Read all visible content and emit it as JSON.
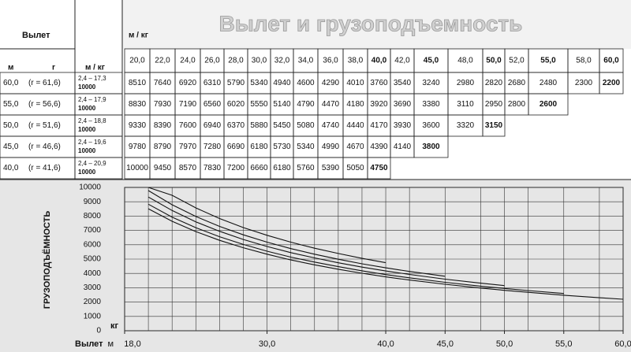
{
  "title": "Вылет и грузоподъемность",
  "table": {
    "corner": "Вылет",
    "sub_m": "м",
    "sub_r": "r",
    "unit_left": "м / кг",
    "unit_top": "м / кг",
    "columns": [
      {
        "value": 20,
        "label": "20,0"
      },
      {
        "value": 22,
        "label": "22,0"
      },
      {
        "value": 24,
        "label": "24,0"
      },
      {
        "value": 26,
        "label": "26,0"
      },
      {
        "value": 28,
        "label": "28,0"
      },
      {
        "value": 30,
        "label": "30,0"
      },
      {
        "value": 32,
        "label": "32,0"
      },
      {
        "value": 34,
        "label": "34,0"
      },
      {
        "value": 36,
        "label": "36,0"
      },
      {
        "value": 38,
        "label": "38,0"
      },
      {
        "value": 40,
        "label": "40,0"
      },
      {
        "value": 42,
        "label": "42,0"
      },
      {
        "value": 45,
        "label": "45,0"
      },
      {
        "value": 48,
        "label": "48,0"
      },
      {
        "value": 50,
        "label": "50,0"
      },
      {
        "value": 52,
        "label": "52,0"
      },
      {
        "value": 55,
        "label": "55,0"
      },
      {
        "value": 58,
        "label": "58,0"
      },
      {
        "value": 60,
        "label": "60,0"
      }
    ],
    "rows": [
      {
        "boom": "60,0",
        "r": "(r = 61,6)",
        "range": "2,4 – 17,3",
        "max": "10000",
        "values": [
          8510,
          7640,
          6920,
          6310,
          5790,
          5340,
          4940,
          4600,
          4290,
          4010,
          3760,
          3540,
          3240,
          2980,
          2820,
          2680,
          2480,
          2300,
          2200
        ]
      },
      {
        "boom": "55,0",
        "r": "(r = 56,6)",
        "range": "2,4 – 17,9",
        "max": "10000",
        "values": [
          8830,
          7930,
          7190,
          6560,
          6020,
          5550,
          5140,
          4790,
          4470,
          4180,
          3920,
          3690,
          3380,
          3110,
          2950,
          2800,
          2600
        ]
      },
      {
        "boom": "50,0",
        "r": "(r = 51,6)",
        "range": "2,4 – 18,8",
        "max": "10000",
        "values": [
          9330,
          8390,
          7600,
          6940,
          6370,
          5880,
          5450,
          5080,
          4740,
          4440,
          4170,
          3930,
          3600,
          3320,
          3150
        ]
      },
      {
        "boom": "45,0",
        "r": "(r = 46,6)",
        "range": "2,4 – 19,6",
        "max": "10000",
        "values": [
          9780,
          8790,
          7970,
          7280,
          6690,
          6180,
          5730,
          5340,
          4990,
          4670,
          4390,
          4140,
          3800
        ]
      },
      {
        "boom": "40,0",
        "r": "(r = 41,6)",
        "range": "2,4 – 20,9",
        "max": "10000",
        "values": [
          10000,
          9450,
          8570,
          7830,
          7200,
          6660,
          6180,
          5760,
          5390,
          5050,
          4750
        ]
      }
    ]
  },
  "chart_data": {
    "type": "line",
    "ylabel": "ГРУЗОПОДЪЁМНОСТЬ",
    "xlabel": "Вылет",
    "xunit": "м",
    "yunit": "кг",
    "xlim": [
      18,
      60
    ],
    "ylim": [
      0,
      10000
    ],
    "yticks": [
      0,
      1000,
      2000,
      3000,
      4000,
      5000,
      6000,
      7000,
      8000,
      9000,
      10000
    ],
    "xticks": [
      {
        "value": 18,
        "label": "18,0"
      },
      {
        "value": 30,
        "label": "30,0"
      },
      {
        "value": 40,
        "label": "40,0"
      },
      {
        "value": 45,
        "label": "45,0"
      },
      {
        "value": 50,
        "label": "50,0"
      },
      {
        "value": 55,
        "label": "55,0"
      },
      {
        "value": 60,
        "label": "60,0"
      }
    ],
    "grid": true
  }
}
